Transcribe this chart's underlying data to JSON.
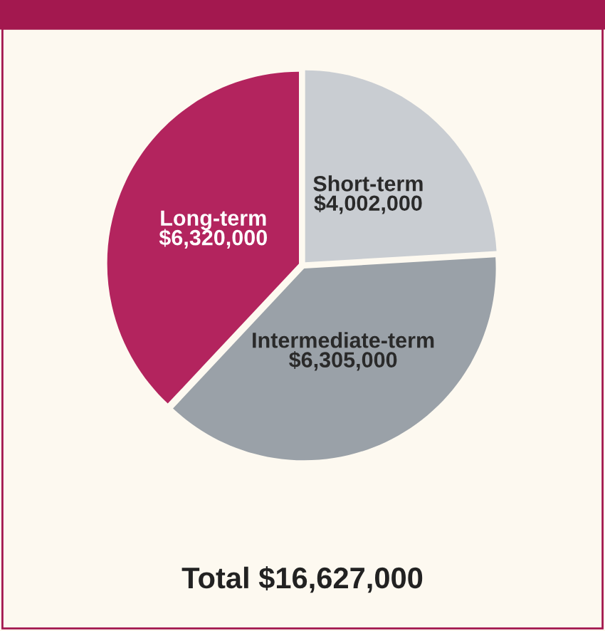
{
  "chart_data": {
    "type": "pie",
    "categories": [
      "Short-term",
      "Intermediate-term",
      "Long-term"
    ],
    "values": [
      4002000,
      6305000,
      6320000
    ],
    "value_labels": [
      "$4,002,000",
      "$6,305,000",
      "$6,320,000"
    ],
    "colors": [
      "#c9cdd2",
      "#9aa1a8",
      "#b3245e"
    ],
    "annotations": [
      "Total $16,627,000"
    ]
  }
}
